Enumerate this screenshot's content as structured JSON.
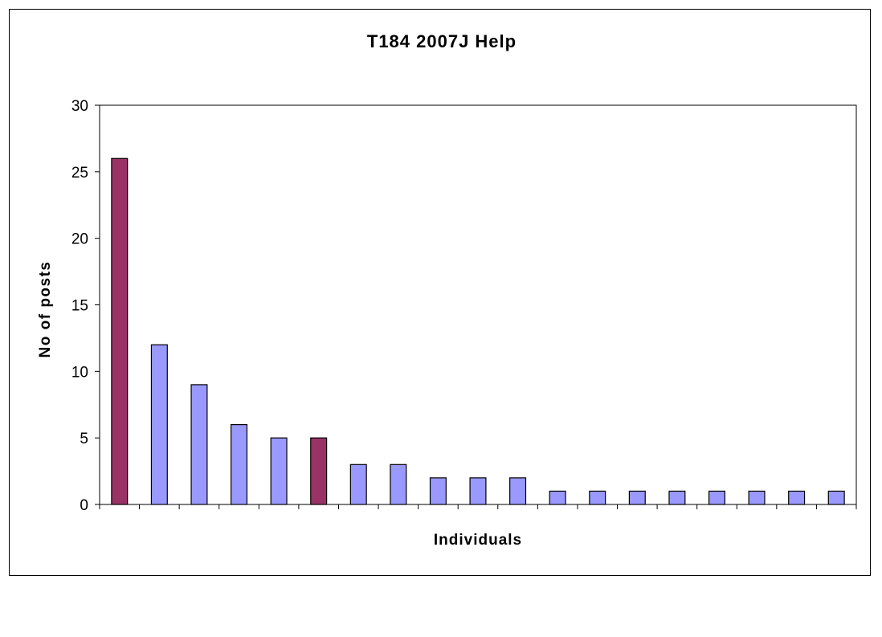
{
  "chart_data": {
    "type": "bar",
    "title": "T184 2007J Help",
    "xlabel": "Individuals",
    "ylabel": "No of posts",
    "ylim": [
      0,
      30
    ],
    "yticks": [
      "0",
      "5",
      "10",
      "15",
      "20",
      "25",
      "30"
    ],
    "grid": false,
    "legend": "none",
    "values": [
      26,
      12,
      9,
      6,
      5,
      5,
      3,
      3,
      2,
      2,
      2,
      1,
      1,
      1,
      1,
      1,
      1,
      1,
      1
    ],
    "highlighted_indices": [
      0,
      5
    ],
    "colors": {
      "bar": "#9999ff",
      "highlight": "#993366",
      "outline": "#000000"
    }
  }
}
